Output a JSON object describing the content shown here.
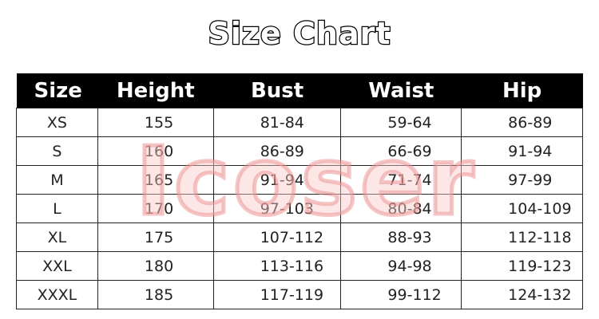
{
  "title": "Size Chart",
  "watermark": "Icoser",
  "table": {
    "headers": [
      "Size",
      "Height",
      "Bust",
      "Waist",
      "Hip"
    ],
    "rows": [
      [
        "XS",
        "155",
        "81-84",
        "59-64",
        "86-89"
      ],
      [
        "S",
        "160",
        "86-89",
        "66-69",
        "91-94"
      ],
      [
        "M",
        "165",
        "91-94",
        "71-74",
        "97-99"
      ],
      [
        "L",
        "170",
        "97-103",
        "80-84",
        "104-109"
      ],
      [
        "XL",
        "175",
        "107-112",
        "88-93",
        "112-118"
      ],
      [
        "XXL",
        "180",
        "113-116",
        "94-98",
        "119-123"
      ],
      [
        "XXXL",
        "185",
        "117-119",
        "99-112",
        "124-132"
      ]
    ]
  },
  "colors": {
    "header_bg": "#000000",
    "header_text": "#ffffff",
    "watermark": "#f0aaaa"
  }
}
